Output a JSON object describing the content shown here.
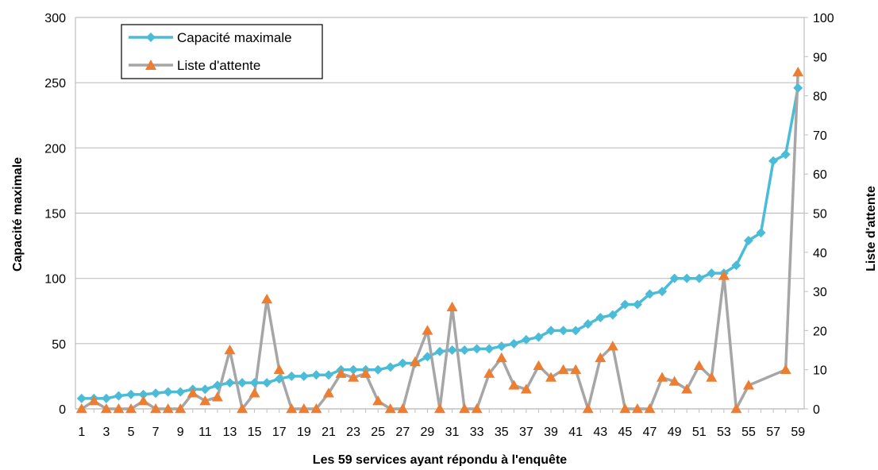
{
  "chart_data": {
    "type": "line",
    "xlabel": "Les 59 services ayant répondu à l'enquête",
    "ylabel": "Capacité maximale",
    "y2label": "Liste d'attente",
    "ylim": [
      0,
      300
    ],
    "y2lim": [
      0,
      100
    ],
    "yticks": [
      0,
      50,
      100,
      150,
      200,
      250,
      300
    ],
    "y2ticks": [
      0,
      10,
      20,
      30,
      40,
      50,
      60,
      70,
      80,
      90,
      100
    ],
    "x": [
      1,
      2,
      3,
      4,
      5,
      6,
      7,
      8,
      9,
      10,
      11,
      12,
      13,
      14,
      15,
      16,
      17,
      18,
      19,
      20,
      21,
      22,
      23,
      24,
      25,
      26,
      27,
      28,
      29,
      30,
      31,
      32,
      33,
      34,
      35,
      36,
      37,
      38,
      39,
      40,
      41,
      42,
      43,
      44,
      45,
      46,
      47,
      48,
      49,
      50,
      51,
      52,
      53,
      54,
      55,
      56,
      57,
      58,
      59
    ],
    "xtick_labels": [
      "1",
      "3",
      "5",
      "7",
      "9",
      "11",
      "13",
      "15",
      "17",
      "19",
      "21",
      "23",
      "25",
      "27",
      "29",
      "31",
      "33",
      "35",
      "37",
      "39",
      "41",
      "43",
      "45",
      "47",
      "49",
      "51",
      "53",
      "55",
      "57",
      "59"
    ],
    "grid": "horizontal",
    "legend_position": "top-left",
    "series": [
      {
        "name": "Capacité maximale",
        "axis": "left",
        "color": "#4BBCD8",
        "marker": "diamond",
        "values": [
          8,
          8,
          8,
          10,
          11,
          11,
          12,
          13,
          13,
          15,
          15,
          18,
          20,
          20,
          20,
          20,
          23,
          25,
          25,
          26,
          26,
          30,
          30,
          30,
          30,
          32,
          35,
          35,
          40,
          44,
          45,
          45,
          46,
          46,
          48,
          50,
          53,
          55,
          60,
          60,
          60,
          65,
          70,
          72,
          80,
          80,
          88,
          90,
          100,
          100,
          100,
          104,
          104,
          110,
          129,
          135,
          190,
          195,
          246
        ]
      },
      {
        "name": "Liste d'attente",
        "axis": "right",
        "color": "#A6A6A6",
        "marker_color": "#ED7D31",
        "marker": "triangle",
        "values": [
          0,
          2,
          0,
          0,
          0,
          2,
          0,
          0,
          0,
          4,
          2,
          3,
          15,
          0,
          4,
          28,
          10,
          0,
          0,
          0,
          4,
          9,
          8,
          9,
          2,
          0,
          0,
          12,
          20,
          0,
          26,
          0,
          0,
          9,
          13,
          6,
          5,
          11,
          8,
          10,
          10,
          0,
          13,
          16,
          0,
          0,
          0,
          8,
          7,
          5,
          11,
          8,
          34,
          0,
          6,
          null,
          null,
          10,
          86
        ]
      }
    ]
  }
}
